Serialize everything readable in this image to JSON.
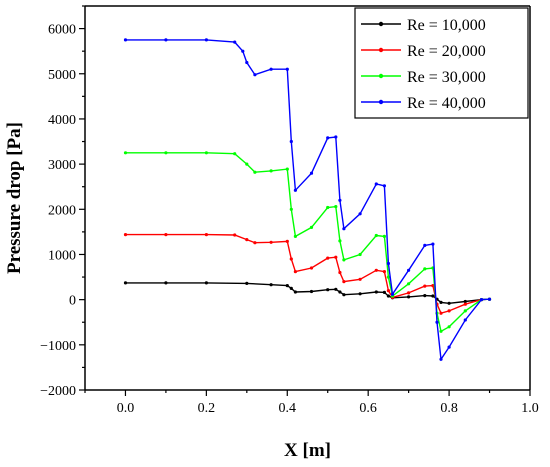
{
  "chart_data": {
    "type": "line",
    "xlabel": "X [m]",
    "ylabel": "Pressure drop [Pa]",
    "xlim": [
      -0.1,
      1.0
    ],
    "ylim": [
      -2000,
      6500
    ],
    "xticks": [
      "0.0",
      "0.2",
      "0.4",
      "0.6",
      "0.8",
      "1.0"
    ],
    "yticks": [
      "−2000",
      "−1000",
      "0",
      "1000",
      "2000",
      "3000",
      "4000",
      "5000",
      "6000"
    ],
    "legend_position": "top-right",
    "series": [
      {
        "name": "Re = 10,000",
        "color": "#000000",
        "x": [
          0.0,
          0.1,
          0.2,
          0.3,
          0.36,
          0.4,
          0.41,
          0.42,
          0.46,
          0.5,
          0.52,
          0.53,
          0.54,
          0.58,
          0.62,
          0.64,
          0.65,
          0.66,
          0.7,
          0.74,
          0.76,
          0.77,
          0.78,
          0.8,
          0.84,
          0.88,
          0.9
        ],
        "y": [
          370,
          370,
          370,
          360,
          330,
          310,
          250,
          170,
          180,
          220,
          230,
          170,
          110,
          130,
          170,
          160,
          80,
          40,
          60,
          90,
          80,
          10,
          -60,
          -80,
          -40,
          0,
          10
        ]
      },
      {
        "name": "Re = 20,000",
        "color": "#ff0000",
        "x": [
          0.0,
          0.1,
          0.2,
          0.27,
          0.3,
          0.32,
          0.36,
          0.4,
          0.41,
          0.42,
          0.46,
          0.5,
          0.52,
          0.53,
          0.54,
          0.58,
          0.62,
          0.64,
          0.65,
          0.66,
          0.7,
          0.74,
          0.76,
          0.77,
          0.78,
          0.8,
          0.84,
          0.88,
          0.9
        ],
        "y": [
          1440,
          1440,
          1440,
          1430,
          1330,
          1260,
          1270,
          1290,
          900,
          620,
          700,
          920,
          940,
          600,
          400,
          450,
          650,
          620,
          200,
          50,
          150,
          300,
          310,
          -100,
          -300,
          -250,
          -100,
          0,
          10
        ]
      },
      {
        "name": "Re = 30,000",
        "color": "#00ff00",
        "x": [
          0.0,
          0.1,
          0.2,
          0.27,
          0.3,
          0.32,
          0.36,
          0.4,
          0.41,
          0.42,
          0.46,
          0.5,
          0.52,
          0.53,
          0.54,
          0.58,
          0.62,
          0.64,
          0.65,
          0.66,
          0.7,
          0.74,
          0.76,
          0.77,
          0.78,
          0.8,
          0.84,
          0.88,
          0.9
        ],
        "y": [
          3250,
          3250,
          3250,
          3230,
          3000,
          2820,
          2850,
          2890,
          2000,
          1400,
          1600,
          2040,
          2060,
          1300,
          880,
          1000,
          1420,
          1400,
          500,
          80,
          350,
          680,
          700,
          -300,
          -700,
          -600,
          -250,
          0,
          10
        ]
      },
      {
        "name": "Re = 40,000",
        "color": "#0000ff",
        "x": [
          0.0,
          0.1,
          0.2,
          0.27,
          0.29,
          0.3,
          0.32,
          0.36,
          0.4,
          0.41,
          0.42,
          0.46,
          0.5,
          0.52,
          0.53,
          0.54,
          0.58,
          0.62,
          0.64,
          0.65,
          0.66,
          0.7,
          0.74,
          0.76,
          0.77,
          0.78,
          0.8,
          0.84,
          0.88,
          0.9
        ],
        "y": [
          5750,
          5750,
          5750,
          5700,
          5500,
          5250,
          4980,
          5100,
          5100,
          3500,
          2420,
          2800,
          3580,
          3600,
          2200,
          1570,
          1900,
          2560,
          2520,
          800,
          120,
          650,
          1200,
          1230,
          -500,
          -1320,
          -1050,
          -450,
          0,
          10
        ]
      }
    ]
  }
}
